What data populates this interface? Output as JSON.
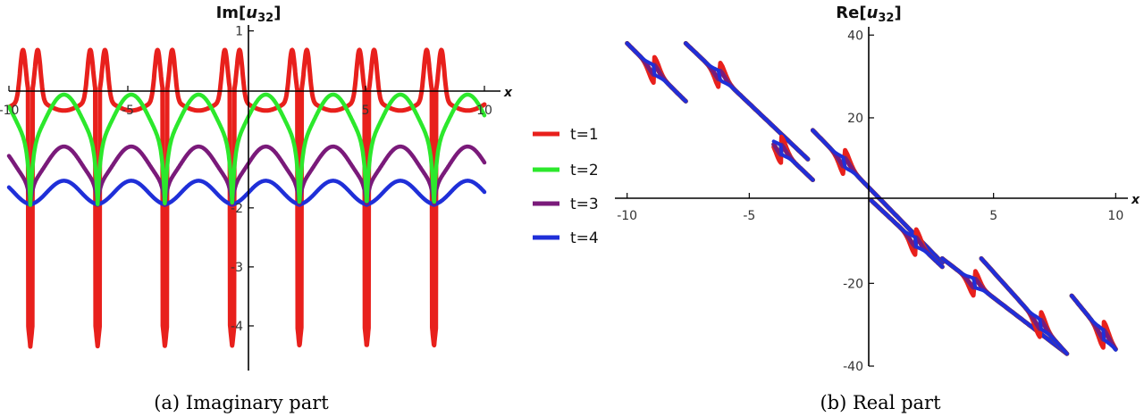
{
  "colors": {
    "t1": "#e8201c",
    "t2": "#2ce82c",
    "t3": "#7a1a7a",
    "t4": "#1f2fd8"
  },
  "legend": {
    "items": [
      "t=1",
      "t=2",
      "t=3",
      "t=4"
    ]
  },
  "chart_data": [
    {
      "type": "line",
      "title": "Im[",
      "title_var": "u",
      "title_sub": "32",
      "title_close": "]",
      "xlabel": "x",
      "xlim": [
        -10,
        10
      ],
      "ylim": [
        -4.5,
        1.1
      ],
      "xticks": [
        -10,
        -5,
        5,
        10
      ],
      "xtick_labels": [
        "-10",
        "-5",
        "5",
        "10"
      ],
      "yticks": [
        1,
        -2,
        -3,
        -4
      ],
      "ytick_labels": [
        "1",
        "-2",
        "-3",
        "-4"
      ],
      "caption": "(a)  Imaginary part",
      "series": [
        {
          "key": "t1",
          "offset": 0.0,
          "period": 2.83,
          "style": "spiky"
        },
        {
          "key": "t2",
          "offset": -0.55,
          "period": 2.83,
          "style": "cusp"
        },
        {
          "key": "t3",
          "offset": -1.35,
          "period": 2.83,
          "style": "cusp"
        },
        {
          "key": "t4",
          "offset": -1.85,
          "period": 2.83,
          "style": "cusp"
        }
      ]
    },
    {
      "type": "line",
      "title": "Re[",
      "title_var": "u",
      "title_sub": "32",
      "title_close": "]",
      "xlabel": "x",
      "xlim": [
        -10.5,
        10.5
      ],
      "ylim": [
        -40,
        42
      ],
      "xticks": [
        -10,
        -5,
        5,
        10
      ],
      "xtick_labels": [
        "-10",
        "-5",
        "5",
        "10"
      ],
      "yticks": [
        40,
        20,
        -20,
        -40
      ],
      "ytick_labels": [
        "40",
        "20",
        "-20",
        "-40"
      ],
      "caption": "(b)  Real part",
      "segments": [
        {
          "x0": -10.0,
          "x1": -7.6,
          "y0": 38.0,
          "y1": 24.0,
          "cx": -8.9
        },
        {
          "x0": -7.6,
          "x1": -2.6,
          "y0": 38.0,
          "y1": 10.0,
          "cx": -6.2
        },
        {
          "x0": -4.0,
          "x1": -2.4,
          "y0": 14.0,
          "y1": 5.0,
          "cx": -3.7
        },
        {
          "x0": -2.4,
          "x1": 2.9,
          "y0": 17.0,
          "y1": -15.0,
          "cx": -1.1
        },
        {
          "x0": 0.0,
          "x1": 2.9,
          "y0": 0.0,
          "y1": -16.0,
          "cx": 1.8
        },
        {
          "x0": 2.9,
          "x1": 8.0,
          "y0": -14.0,
          "y1": -37.0,
          "cx": 4.2
        },
        {
          "x0": 4.5,
          "x1": 8.0,
          "y0": -14.0,
          "y1": -37.0,
          "cx": 6.9
        },
        {
          "x0": 8.2,
          "x1": 10.0,
          "y0": -23.0,
          "y1": -36.0,
          "cx": 9.5
        }
      ]
    }
  ]
}
